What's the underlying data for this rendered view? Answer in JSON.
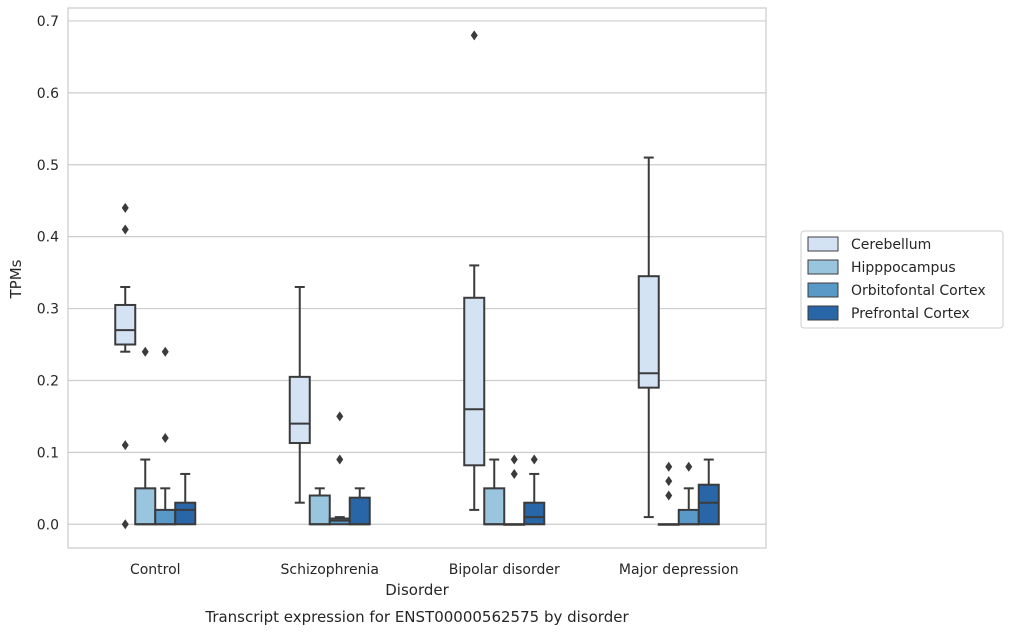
{
  "chart_data": {
    "type": "boxplot",
    "title": "Transcript expression for ENST00000562575 by disorder",
    "xlabel": "Disorder",
    "ylabel": "TPMs",
    "ylim": [
      -0.033,
      0.718
    ],
    "yticks": [
      0.0,
      0.1,
      0.2,
      0.3,
      0.4,
      0.5,
      0.6,
      0.7
    ],
    "ytick_labels": [
      "0.0",
      "0.1",
      "0.2",
      "0.3",
      "0.4",
      "0.5",
      "0.6",
      "0.7"
    ],
    "categories": [
      "Control",
      "Schizophrenia",
      "Bipolar disorder",
      "Major depression"
    ],
    "grid": true,
    "legend_position": "right",
    "series": [
      {
        "name": "Cerebellum",
        "color": "#d4e3f4",
        "boxes": [
          {
            "whislo": 0.24,
            "q1": 0.25,
            "med": 0.27,
            "q3": 0.305,
            "whishi": 0.33,
            "fliers": [
              0.44,
              0.41,
              0.11,
              0.0
            ]
          },
          {
            "whislo": 0.03,
            "q1": 0.113,
            "med": 0.14,
            "q3": 0.205,
            "whishi": 0.33,
            "fliers": []
          },
          {
            "whislo": 0.02,
            "q1": 0.082,
            "med": 0.16,
            "q3": 0.315,
            "whishi": 0.36,
            "fliers": [
              0.68
            ]
          },
          {
            "whislo": 0.01,
            "q1": 0.19,
            "med": 0.21,
            "q3": 0.345,
            "whishi": 0.51,
            "fliers": []
          }
        ]
      },
      {
        "name": "Hipppocampus",
        "color": "#9ac5df",
        "boxes": [
          {
            "whislo": 0.0,
            "q1": 0.0,
            "med": 0.0,
            "q3": 0.05,
            "whishi": 0.09,
            "fliers": [
              0.24
            ]
          },
          {
            "whislo": 0.0,
            "q1": 0.0,
            "med": 0.0,
            "q3": 0.04,
            "whishi": 0.05,
            "fliers": []
          },
          {
            "whislo": 0.0,
            "q1": 0.0,
            "med": 0.0,
            "q3": 0.05,
            "whishi": 0.09,
            "fliers": []
          },
          {
            "whislo": 0.0,
            "q1": 0.0,
            "med": 0.0,
            "q3": 0.0,
            "whishi": 0.0,
            "fliers": [
              0.08,
              0.06,
              0.04
            ]
          }
        ]
      },
      {
        "name": "Orbitofontal Cortex",
        "color": "#5899c7",
        "boxes": [
          {
            "whislo": 0.0,
            "q1": 0.0,
            "med": 0.0,
            "q3": 0.02,
            "whishi": 0.05,
            "fliers": [
              0.24,
              0.12
            ]
          },
          {
            "whislo": 0.0,
            "q1": 0.0,
            "med": 0.005,
            "q3": 0.008,
            "whishi": 0.01,
            "fliers": [
              0.15,
              0.09
            ]
          },
          {
            "whislo": 0.0,
            "q1": 0.0,
            "med": 0.0,
            "q3": 0.0,
            "whishi": 0.0,
            "fliers": [
              0.09,
              0.07
            ]
          },
          {
            "whislo": 0.0,
            "q1": 0.0,
            "med": 0.0,
            "q3": 0.02,
            "whishi": 0.05,
            "fliers": [
              0.08
            ]
          }
        ]
      },
      {
        "name": "Prefrontal Cortex",
        "color": "#2966a8",
        "boxes": [
          {
            "whislo": 0.0,
            "q1": 0.0,
            "med": 0.02,
            "q3": 0.03,
            "whishi": 0.07,
            "fliers": []
          },
          {
            "whislo": 0.0,
            "q1": 0.0,
            "med": 0.0,
            "q3": 0.037,
            "whishi": 0.05,
            "fliers": []
          },
          {
            "whislo": 0.0,
            "q1": 0.0,
            "med": 0.01,
            "q3": 0.03,
            "whishi": 0.07,
            "fliers": [
              0.09
            ]
          },
          {
            "whislo": 0.0,
            "q1": 0.0,
            "med": 0.03,
            "q3": 0.055,
            "whishi": 0.09,
            "fliers": []
          }
        ]
      }
    ]
  }
}
